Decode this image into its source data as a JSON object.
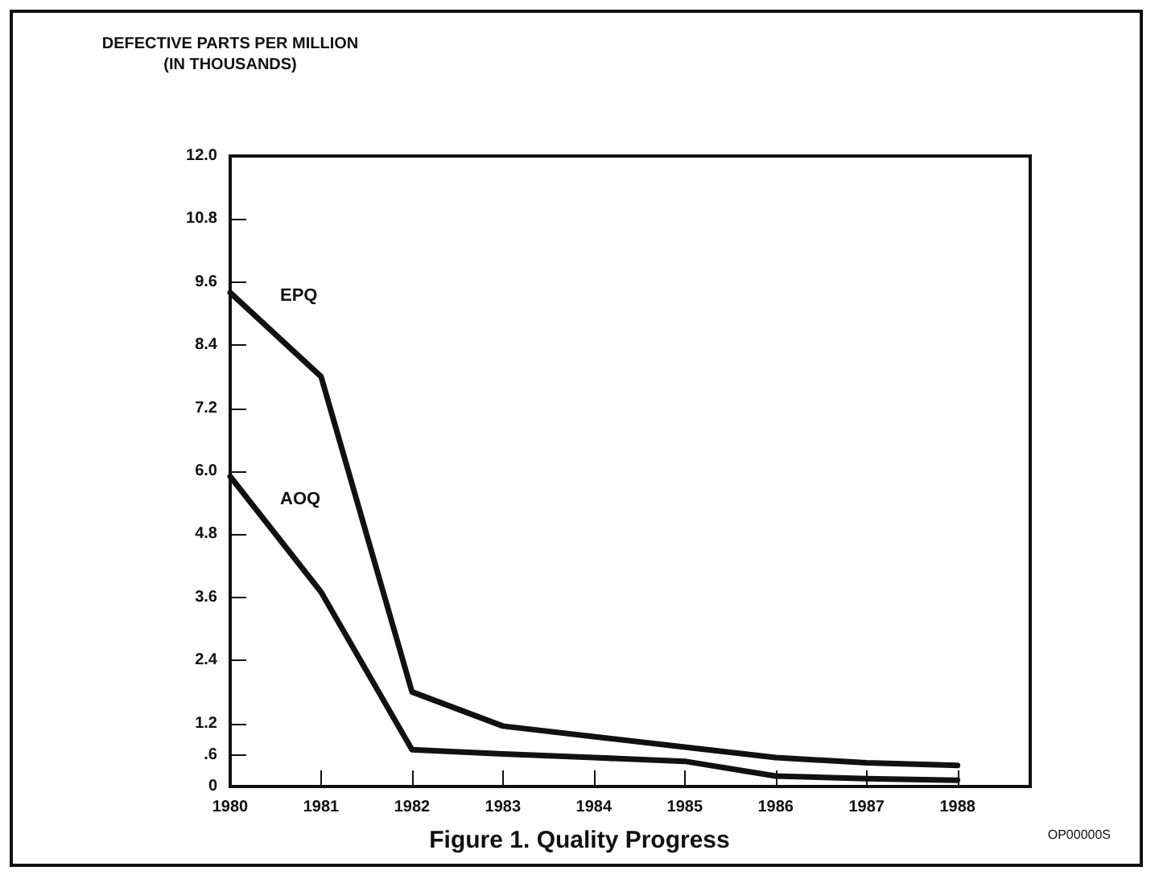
{
  "chart_data": {
    "type": "line",
    "title": "Figure 1. Quality Progress",
    "ylabel": "DEFECTIVE PARTS PER MILLION\n(IN THOUSANDS)",
    "x": [
      1980,
      1981,
      1982,
      1983,
      1984,
      1985,
      1986,
      1987,
      1988
    ],
    "series": [
      {
        "name": "EPQ",
        "color": "#111111",
        "values": [
          9.4,
          7.8,
          1.8,
          1.15,
          0.95,
          0.75,
          0.55,
          0.45,
          0.4
        ]
      },
      {
        "name": "AOQ",
        "color": "#111111",
        "values": [
          5.9,
          3.7,
          0.7,
          0.62,
          0.55,
          0.48,
          0.2,
          0.15,
          0.12
        ]
      }
    ],
    "xlim": [
      1980,
      1988.8
    ],
    "xticks": [
      1980,
      1981,
      1982,
      1983,
      1984,
      1985,
      1986,
      1987,
      1988
    ],
    "ylim": [
      0,
      12
    ],
    "yticks": [
      0,
      {
        "value": 0.6,
        "label": ".6"
      },
      {
        "value": 1.2,
        "label": "1.2"
      },
      {
        "value": 2.4,
        "label": "2.4"
      },
      {
        "value": 3.6,
        "label": "3.6"
      },
      {
        "value": 4.8,
        "label": "4.8"
      },
      {
        "value": 6,
        "label": "6.0"
      },
      {
        "value": 7.2,
        "label": "7.2"
      },
      {
        "value": 8.4,
        "label": "8.4"
      },
      {
        "value": 9.6,
        "label": "9.6"
      },
      {
        "value": 10.8,
        "label": "10.8"
      },
      {
        "value": 12,
        "label": "12.0"
      }
    ],
    "annotations": [
      "OP00000S"
    ],
    "grid": false,
    "legend": false,
    "marker": "none",
    "line_style": "solid"
  }
}
